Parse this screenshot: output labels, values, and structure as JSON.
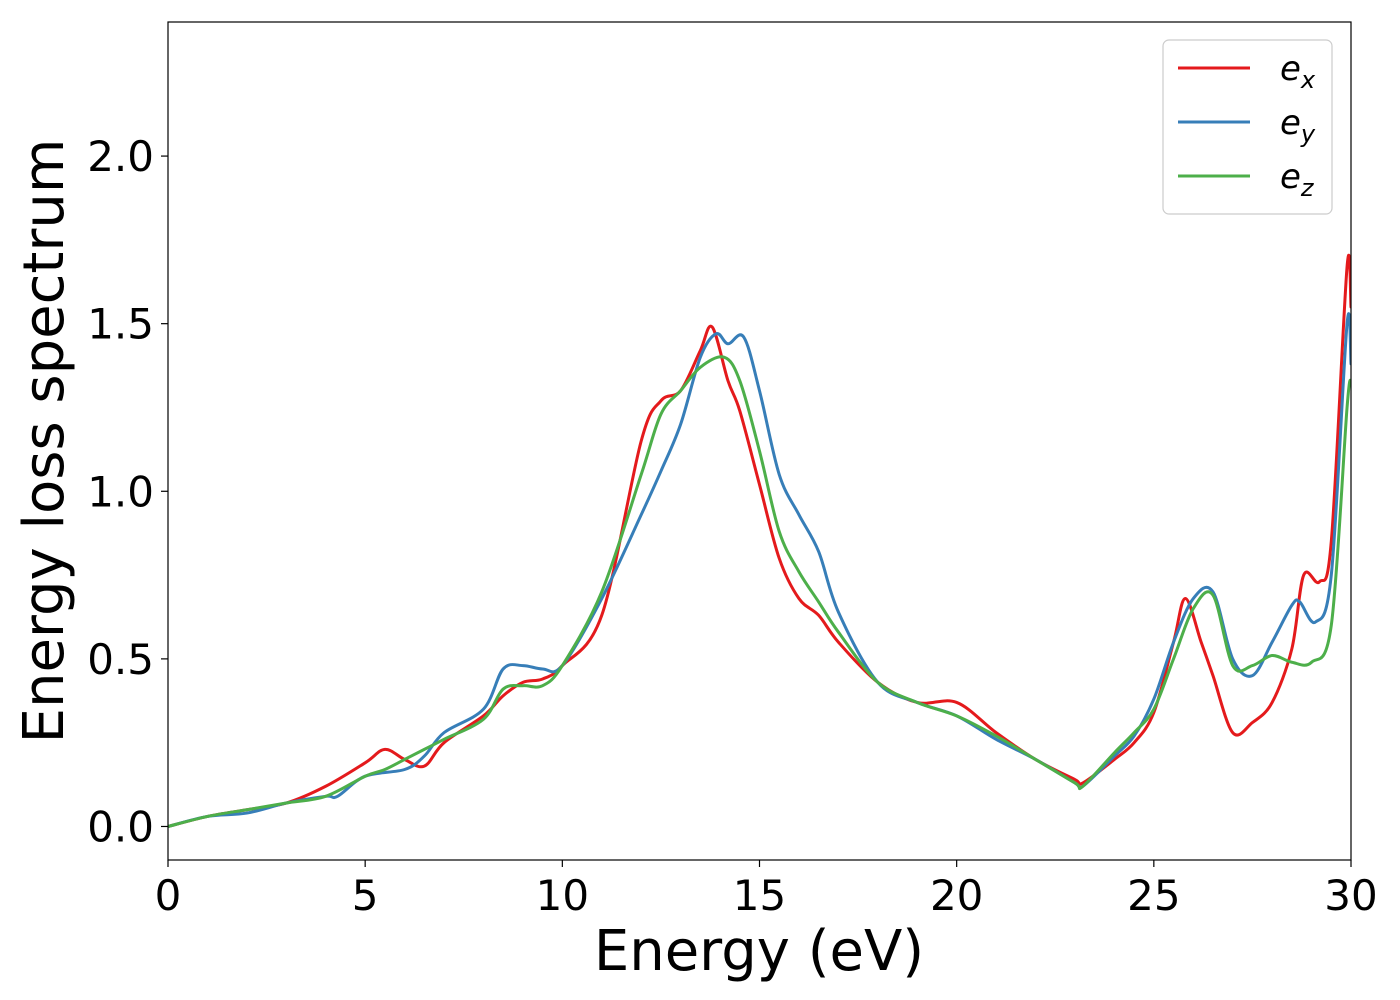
{
  "chart_data": {
    "type": "line",
    "xlabel": "Energy (eV)",
    "ylabel": "Energy loss spectrum",
    "xlim": [
      0,
      30
    ],
    "ylim": [
      -0.1,
      2.4
    ],
    "xticks": [
      0,
      5,
      10,
      15,
      20,
      25,
      30
    ],
    "xtick_labels": [
      "0",
      "5",
      "10",
      "15",
      "20",
      "25",
      "30"
    ],
    "yticks": [
      0.0,
      0.5,
      1.0,
      1.5,
      2.0
    ],
    "ytick_labels": [
      "0.0",
      "0.5",
      "1.0",
      "1.5",
      "2.0"
    ],
    "grid": false,
    "legend_position": "top-right",
    "series": [
      {
        "name": "e_x",
        "base": "e",
        "sub": "x",
        "color": "#e41a1c",
        "x": [
          0,
          1,
          2,
          3,
          4,
          5,
          5.5,
          6,
          6.5,
          7,
          8,
          8.5,
          9,
          9.5,
          10,
          11,
          12,
          12.5,
          13,
          13.5,
          13.8,
          14.2,
          14.5,
          15,
          15.5,
          16,
          16.5,
          17,
          18,
          19,
          20,
          21,
          22,
          23,
          23.2,
          24,
          24.5,
          25,
          25.5,
          25.8,
          26.2,
          26.5,
          27,
          27.5,
          28,
          28.5,
          28.8,
          29.2,
          29.5,
          29.9,
          30
        ],
        "y": [
          0.0,
          0.03,
          0.05,
          0.07,
          0.12,
          0.19,
          0.23,
          0.2,
          0.18,
          0.25,
          0.33,
          0.39,
          0.43,
          0.44,
          0.48,
          0.63,
          1.15,
          1.27,
          1.3,
          1.42,
          1.49,
          1.33,
          1.24,
          1.02,
          0.8,
          0.68,
          0.63,
          0.55,
          0.43,
          0.37,
          0.37,
          0.28,
          0.2,
          0.14,
          0.13,
          0.2,
          0.25,
          0.34,
          0.55,
          0.68,
          0.55,
          0.45,
          0.28,
          0.31,
          0.37,
          0.53,
          0.75,
          0.73,
          0.85,
          1.67,
          1.55
        ]
      },
      {
        "name": "e_y",
        "base": "e",
        "sub": "y",
        "color": "#377eb8",
        "x": [
          0,
          1,
          2,
          3,
          4,
          4.3,
          5,
          6,
          6.5,
          7,
          8,
          8.5,
          9,
          9.5,
          10,
          11,
          12,
          12.5,
          13,
          13.5,
          13.9,
          14.2,
          14.6,
          15,
          15.5,
          16,
          16.5,
          17,
          18,
          19,
          20,
          21,
          22,
          23,
          23.2,
          24,
          24.5,
          25,
          25.5,
          26,
          26.5,
          27,
          27.5,
          28,
          28.5,
          28.7,
          29.1,
          29.5,
          29.9,
          30
        ],
        "y": [
          0.0,
          0.03,
          0.04,
          0.07,
          0.09,
          0.09,
          0.15,
          0.17,
          0.21,
          0.28,
          0.35,
          0.47,
          0.48,
          0.47,
          0.48,
          0.68,
          0.93,
          1.06,
          1.2,
          1.4,
          1.47,
          1.44,
          1.46,
          1.3,
          1.05,
          0.93,
          0.82,
          0.64,
          0.43,
          0.37,
          0.33,
          0.26,
          0.2,
          0.13,
          0.12,
          0.21,
          0.27,
          0.38,
          0.55,
          0.68,
          0.7,
          0.5,
          0.45,
          0.55,
          0.66,
          0.67,
          0.61,
          0.75,
          1.5,
          1.38
        ]
      },
      {
        "name": "e_z",
        "base": "e",
        "sub": "z",
        "color": "#4daf4a",
        "x": [
          0,
          1,
          2,
          3,
          4,
          5,
          5.5,
          6,
          6.5,
          7,
          8,
          8.5,
          9,
          9.5,
          10,
          11,
          12,
          12.5,
          13,
          13.5,
          14.1,
          14.5,
          15,
          15.5,
          16,
          16.5,
          17,
          18,
          19,
          20,
          21,
          22,
          23,
          23.2,
          24,
          24.5,
          25,
          25.5,
          26,
          26.5,
          27,
          27.5,
          28,
          28.5,
          29,
          29.5,
          29.9,
          30
        ],
        "y": [
          0.0,
          0.03,
          0.05,
          0.07,
          0.09,
          0.15,
          0.17,
          0.2,
          0.23,
          0.26,
          0.32,
          0.41,
          0.42,
          0.42,
          0.48,
          0.7,
          1.05,
          1.23,
          1.3,
          1.37,
          1.4,
          1.33,
          1.12,
          0.88,
          0.76,
          0.67,
          0.58,
          0.43,
          0.37,
          0.33,
          0.27,
          0.2,
          0.13,
          0.12,
          0.22,
          0.28,
          0.35,
          0.5,
          0.65,
          0.69,
          0.48,
          0.48,
          0.51,
          0.49,
          0.49,
          0.6,
          1.25,
          1.33
        ]
      }
    ]
  }
}
